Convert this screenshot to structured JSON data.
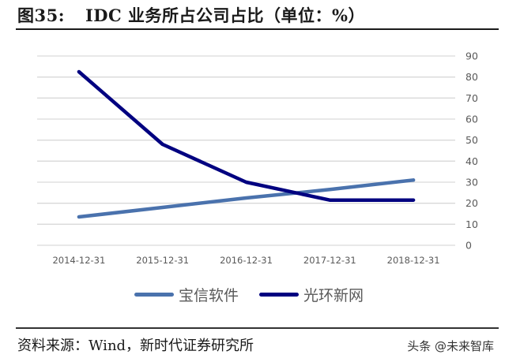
{
  "header": {
    "figure_label": "图35:",
    "title": "IDC 业务所占公司占比（单位：%）"
  },
  "footer": {
    "source": "资料来源：Wind，新时代证券研究所",
    "watermark": "头条 @未来智库"
  },
  "colors": {
    "baoxin": "#4a72ad",
    "guanghuan": "#000080",
    "grid": "#d9d9d9",
    "tick_text": "#595959"
  },
  "chart_data": {
    "type": "line",
    "title": "IDC 业务所占公司占比（单位：%）",
    "xlabel": "",
    "ylabel": "",
    "categories": [
      "2014-12-31",
      "2015-12-31",
      "2016-12-31",
      "2017-12-31",
      "2018-12-31"
    ],
    "series": [
      {
        "name": "宝信软件",
        "color": "#4a72ad",
        "values": [
          13.5,
          18,
          22.5,
          26.5,
          31
        ]
      },
      {
        "name": "光环新网",
        "color": "#000080",
        "values": [
          82.5,
          48,
          30,
          21.5,
          21.5
        ]
      }
    ],
    "ylim": [
      0,
      90
    ],
    "yticks": [
      0,
      10,
      20,
      30,
      40,
      50,
      60,
      70,
      80,
      90
    ],
    "y_axis_position": "right",
    "grid": true,
    "legend_position": "bottom"
  }
}
